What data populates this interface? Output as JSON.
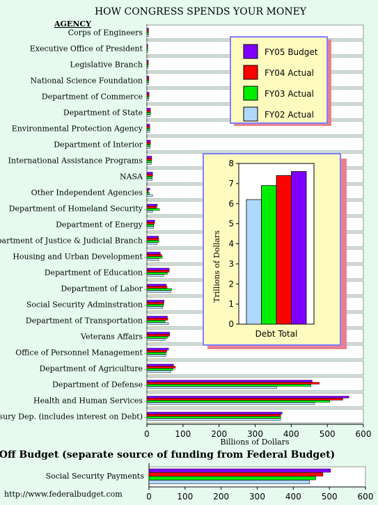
{
  "colors": {
    "fy05": "#8000ff",
    "fy04": "#ff0000",
    "fy03": "#00ee00",
    "fy02": "#b0d8ff",
    "page_bg": "#e6fbee",
    "legend_bg": "#fffbbe",
    "legend_border": "#8080ff",
    "legend_shadow": "#e87f90"
  },
  "chart_data": [
    {
      "type": "bar",
      "orientation": "horizontal",
      "title": "HOW CONGRESS SPENDS YOUR MONEY",
      "category_header": "AGENCY",
      "xlabel": "Billions of Dollars",
      "xlim": [
        0,
        600
      ],
      "xticks": [
        0,
        100,
        200,
        300,
        400,
        500,
        600
      ],
      "legend_position": "right",
      "categories": [
        "Corps of Engineers",
        "Executive Office of President",
        "Legislative Branch",
        "National Science Foundation",
        "Department of Commerce",
        "Department of State",
        "Environmental Protection Agency",
        "Department of Interior",
        "International Assistance Programs",
        "NASA",
        "Other Independent Agencies",
        "Department of Homeland Security",
        "Department of Energy",
        "Department of Justice & Judicial Branch",
        "Housing and Urban Development",
        "Department of Education",
        "Department of Labor",
        "Social Security Adminstration",
        "Department of Transportation",
        "Veterans Affairs",
        "Office of Personnel Management",
        "Department of Agriculture",
        "Department of Defense",
        "Health and Human Services",
        "Treasury Dep. (includes interest on Debt)"
      ],
      "series": [
        {
          "name": "FY05 Budget",
          "values": [
            4.7,
            2.6,
            4.1,
            5.6,
            6.1,
            10,
            8,
            10,
            13.5,
            16,
            8,
            29,
            22,
            32,
            37,
            62,
            54,
            48,
            57,
            63,
            60,
            74,
            458,
            560,
            375
          ]
        },
        {
          "name": "FY04 Actual",
          "values": [
            4.7,
            2.6,
            4.1,
            5.6,
            6.1,
            10,
            8,
            10,
            13.5,
            16,
            4,
            27,
            21,
            33,
            41,
            62,
            56,
            47,
            58,
            63,
            55,
            79,
            478,
            543,
            371
          ]
        },
        {
          "name": "FY03 Actual",
          "values": [
            4.5,
            2.5,
            3.8,
            5.1,
            5.7,
            10,
            8,
            9.5,
            13,
            15,
            7,
            35,
            19,
            33,
            43,
            57,
            69,
            46,
            51,
            58,
            53,
            73,
            455,
            507,
            371
          ]
        },
        {
          "name": "FY02 Actual",
          "values": [
            4.2,
            2.4,
            3.4,
            4.6,
            5.4,
            9,
            7.8,
            9.1,
            12,
            14.5,
            16,
            16,
            19,
            29,
            33,
            47,
            66,
            44,
            60,
            51,
            53,
            67,
            360,
            465,
            371
          ]
        }
      ]
    },
    {
      "type": "bar",
      "title": "",
      "ylabel": "Trillions of Dollars",
      "ylim": [
        0,
        8
      ],
      "yticks": [
        0,
        1,
        2,
        3,
        4,
        5,
        6,
        7,
        8
      ],
      "categories": [
        "Debt Total"
      ],
      "series": [
        {
          "name": "FY02 Actual",
          "values": [
            6.2
          ]
        },
        {
          "name": "FY03 Actual",
          "values": [
            6.9
          ]
        },
        {
          "name": "FY04 Actual",
          "values": [
            7.4
          ]
        },
        {
          "name": "FY05 Budget",
          "values": [
            7.6
          ]
        }
      ]
    },
    {
      "type": "bar",
      "orientation": "horizontal",
      "title": "Off Budget (separate source of funding from Federal Budget)",
      "xlim": [
        0,
        600
      ],
      "xticks": [
        0,
        100,
        200,
        300,
        400,
        500,
        600
      ],
      "categories": [
        "Social Security Payments"
      ],
      "series": [
        {
          "name": "FY05 Budget",
          "values": [
            503
          ]
        },
        {
          "name": "FY04 Actual",
          "values": [
            482
          ]
        },
        {
          "name": "FY03 Actual",
          "values": [
            462
          ]
        },
        {
          "name": "FY02 Actual",
          "values": [
            445
          ]
        }
      ]
    }
  ],
  "footer": {
    "url": "http://www.federalbudget.com"
  }
}
